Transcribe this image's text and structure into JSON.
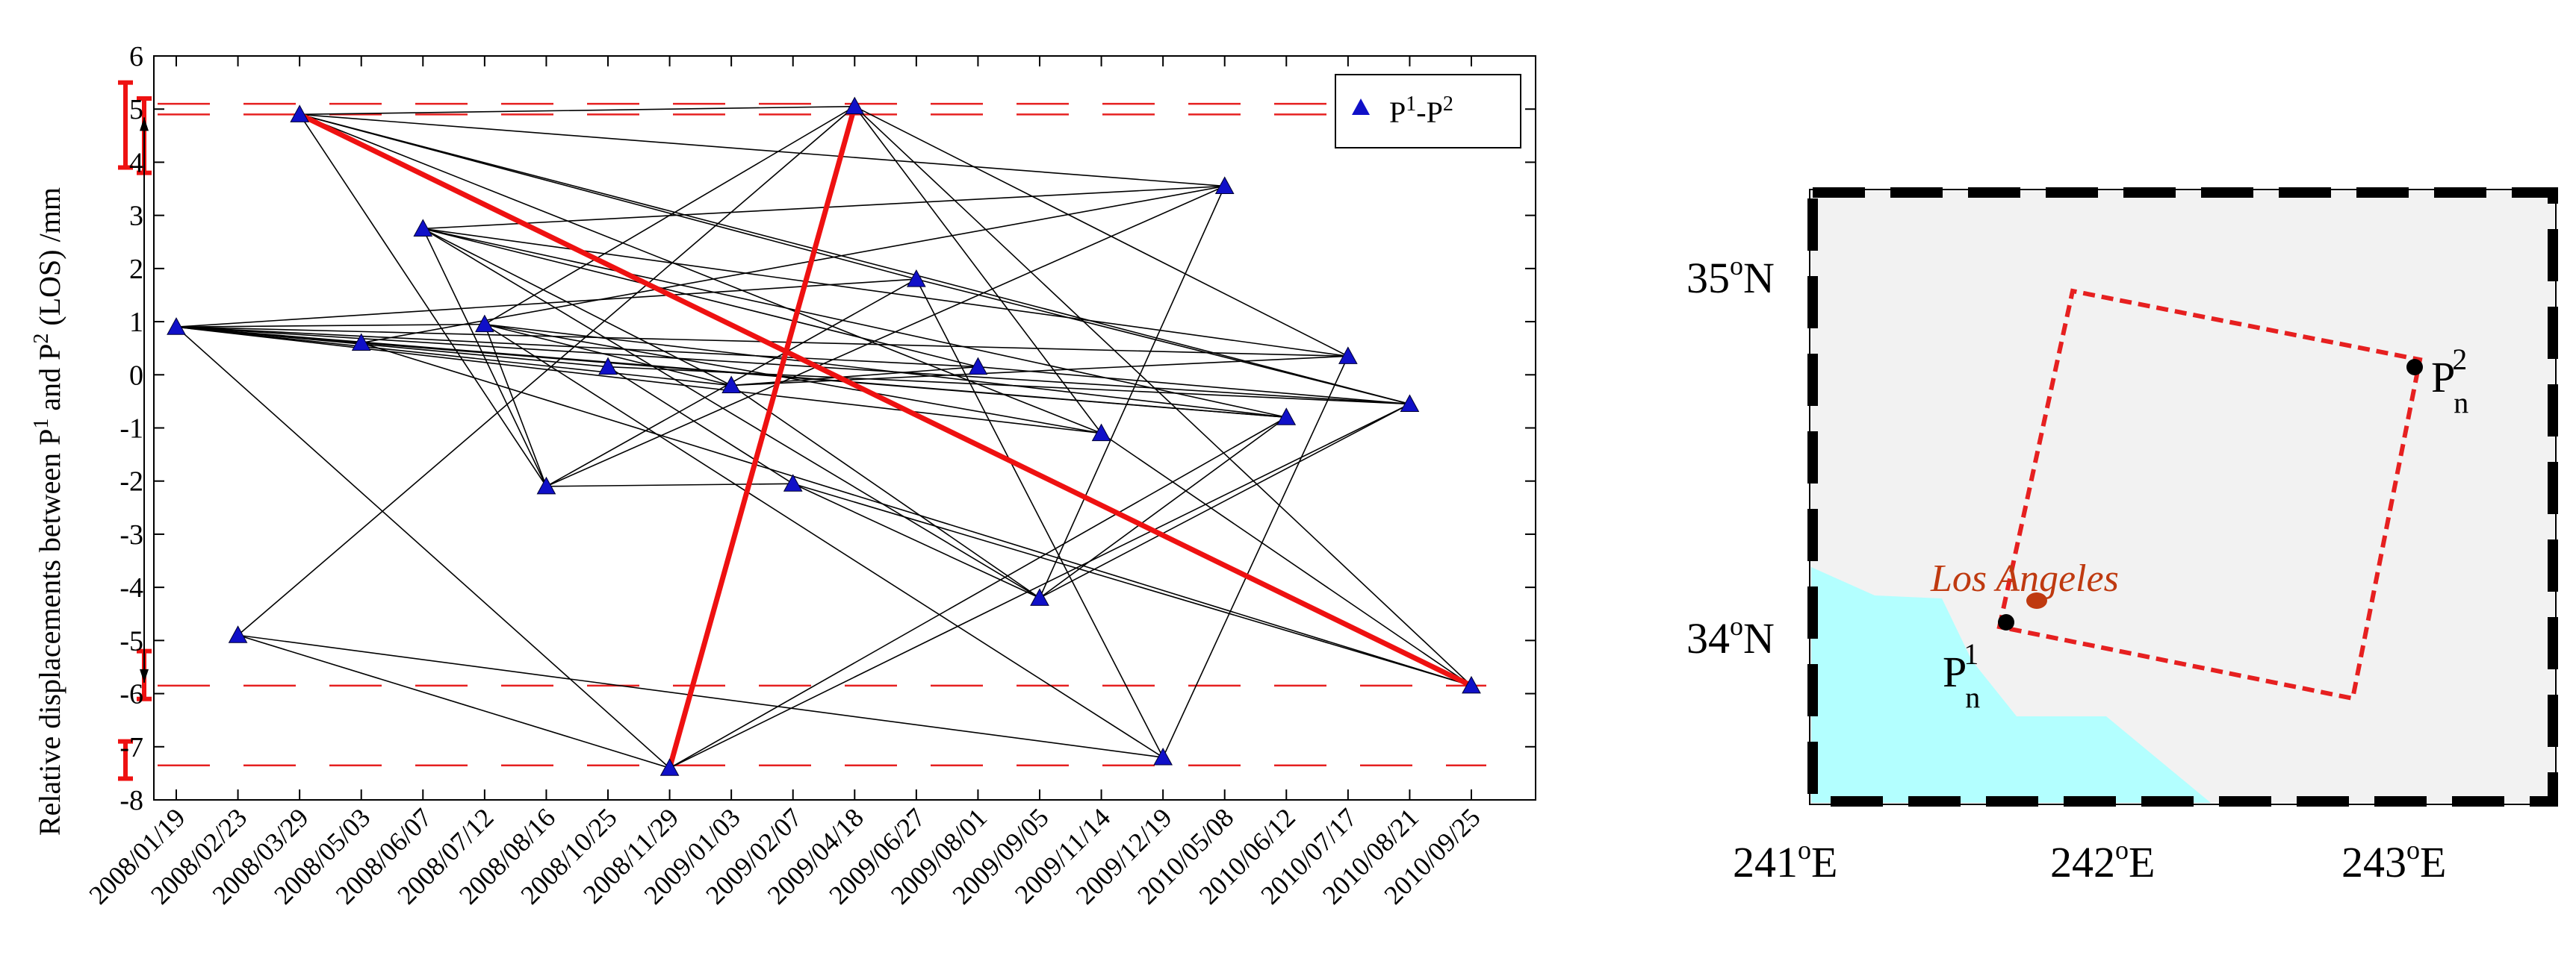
{
  "chart_data": {
    "type": "scatter",
    "title": "",
    "xlabel": "",
    "ylabel": "Relative displacements between P",
    "ylabel_sup1": "1",
    "ylabel_mid": " and P",
    "ylabel_sup2": "2",
    "ylabel_end": " (LOS) /mm",
    "ylim": [
      -8,
      6
    ],
    "yticks": [
      6,
      5,
      4,
      3,
      2,
      1,
      0,
      -1,
      -2,
      -3,
      -4,
      -5,
      -6,
      -7,
      -8
    ],
    "ytick_labels": [
      "6",
      "5",
      "4",
      "3",
      "2",
      "1",
      "0",
      "-1",
      "-2",
      "-3",
      "-4",
      "-5",
      "-6",
      "-7",
      "-8"
    ],
    "categories": [
      "2008/01/19",
      "2008/02/23",
      "2008/03/29",
      "2008/05/03",
      "2008/06/07",
      "2008/07/12",
      "2008/08/16",
      "2008/10/25",
      "2008/11/29",
      "2009/01/03",
      "2009/02/07",
      "2009/04/18",
      "2009/06/27",
      "2009/08/01",
      "2009/09/05",
      "2009/11/14",
      "2009/12/19",
      "2010/05/08",
      "2010/06/12",
      "2010/07/17",
      "2010/08/21",
      "2010/09/25"
    ],
    "legend": {
      "label_base": "P",
      "sup1": "1",
      "dash": "-P",
      "sup2": "2",
      "position": "top-right"
    },
    "series": [
      {
        "name": "P1-P2",
        "values": [
          0.9,
          -4.9,
          4.9,
          0.6,
          2.75,
          0.95,
          -2.1,
          0.15,
          -7.4,
          -0.2,
          -2.05,
          5.05,
          1.8,
          0.15,
          -4.2,
          -1.1,
          -7.2,
          3.55,
          -0.8,
          0.35,
          -0.55,
          -5.85
        ]
      }
    ],
    "network_edges": [
      [
        0,
        3
      ],
      [
        0,
        5
      ],
      [
        0,
        7
      ],
      [
        0,
        9
      ],
      [
        0,
        12
      ],
      [
        0,
        13
      ],
      [
        0,
        15
      ],
      [
        0,
        18
      ],
      [
        0,
        19
      ],
      [
        0,
        20
      ],
      [
        0,
        8
      ],
      [
        1,
        8
      ],
      [
        1,
        11
      ],
      [
        1,
        16
      ],
      [
        2,
        6
      ],
      [
        2,
        11
      ],
      [
        2,
        17
      ],
      [
        2,
        20
      ],
      [
        2,
        12
      ],
      [
        2,
        15
      ],
      [
        4,
        6
      ],
      [
        4,
        9
      ],
      [
        4,
        13
      ],
      [
        4,
        17
      ],
      [
        4,
        18
      ],
      [
        4,
        19
      ],
      [
        4,
        14
      ],
      [
        5,
        6
      ],
      [
        5,
        9
      ],
      [
        5,
        18
      ],
      [
        5,
        11
      ],
      [
        5,
        16
      ],
      [
        6,
        10
      ],
      [
        6,
        12
      ],
      [
        6,
        17
      ],
      [
        7,
        10
      ],
      [
        7,
        20
      ],
      [
        9,
        13
      ],
      [
        9,
        19
      ],
      [
        9,
        14
      ],
      [
        10,
        14
      ],
      [
        10,
        21
      ],
      [
        11,
        15
      ],
      [
        11,
        19
      ],
      [
        11,
        21
      ],
      [
        12,
        16
      ],
      [
        12,
        20
      ],
      [
        13,
        20
      ],
      [
        14,
        17
      ],
      [
        14,
        18
      ],
      [
        14,
        20
      ],
      [
        3,
        17
      ],
      [
        3,
        21
      ],
      [
        15,
        21
      ],
      [
        16,
        19
      ],
      [
        8,
        18
      ],
      [
        8,
        20
      ],
      [
        3,
        18
      ],
      [
        5,
        15
      ]
    ],
    "highlight_edges": [
      [
        2,
        21
      ],
      [
        8,
        11
      ]
    ],
    "reference_lines": [
      5.1,
      4.9,
      -5.85,
      -7.35
    ]
  },
  "map": {
    "lat_labels": [
      {
        "base": "35",
        "sup": "o",
        "suffix": "N"
      },
      {
        "base": "34",
        "sup": "o",
        "suffix": "N"
      }
    ],
    "lon_labels": [
      {
        "base": "241",
        "sup": "o",
        "suffix": "E"
      },
      {
        "base": "242",
        "sup": "o",
        "suffix": "E"
      },
      {
        "base": "243",
        "sup": "o",
        "suffix": "E"
      }
    ],
    "city": "Los Angeles",
    "point1": {
      "base": "P",
      "sub": "n",
      "sup": "1"
    },
    "point2": {
      "base": "P",
      "sub": "n",
      "sup": "2"
    },
    "colors": {
      "land": "#f2f2f2",
      "sea": "#b3ffff",
      "frame": "#e62020",
      "city": "#bf3a10",
      "triangle": "#1010c8",
      "highlight": "#ee1111"
    }
  }
}
